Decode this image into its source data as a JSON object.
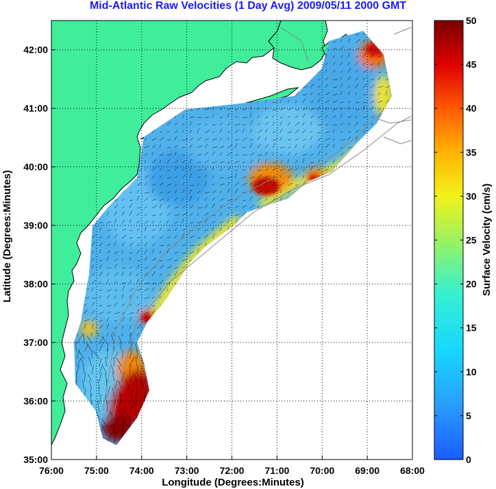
{
  "title": "Mid-Atlantic Raw Velocities (1 Day Avg) 2009/05/11 2000 GMT",
  "map": {
    "xlabel": "Longitude (Degrees:Minutes)",
    "ylabel": "Latitude (Degrees:Minutes)",
    "x_ticks": [
      "76:00",
      "75:00",
      "74:00",
      "73:00",
      "72:00",
      "71:00",
      "70:00",
      "69:00",
      "68:00"
    ],
    "y_ticks": [
      "35:00",
      "36:00",
      "37:00",
      "38:00",
      "39:00",
      "40:00",
      "41:00",
      "42:00"
    ],
    "lon_range": [
      -76,
      -68
    ],
    "lat_range": [
      35,
      42.5
    ],
    "grid": "dotted",
    "land_color": "#40ed9a",
    "ocean_color": "#ffffff"
  },
  "colorbar": {
    "label": "Surface Velocity (cm/s)",
    "ticks": [
      "0",
      "5",
      "10",
      "15",
      "20",
      "25",
      "30",
      "35",
      "40",
      "45",
      "50"
    ],
    "range": [
      0,
      50
    ],
    "colormap": "jet"
  }
}
